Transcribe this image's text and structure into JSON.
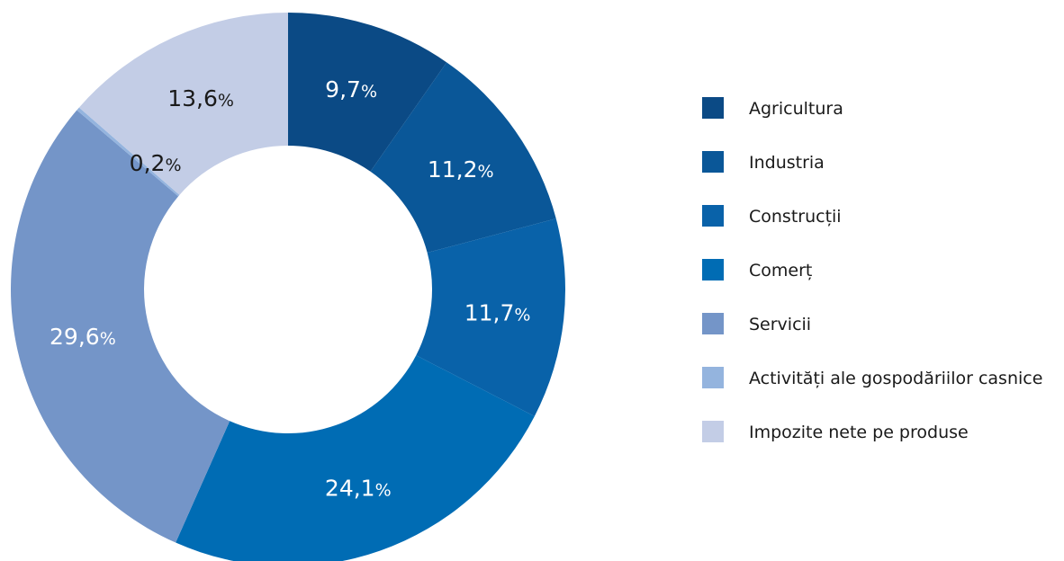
{
  "chart_data": {
    "type": "pie",
    "variant": "donut",
    "title": "",
    "categories": [
      "Agricultura",
      "Industria",
      "Construcții",
      "Comerț",
      "Servicii",
      "Activități ale gospodăriilor casnice",
      "Impozite nete pe produse"
    ],
    "values": [
      9.7,
      11.2,
      11.7,
      24.1,
      29.6,
      0.2,
      13.6
    ],
    "labels": [
      {
        "number": "9,7",
        "unit": "%"
      },
      {
        "number": "11,2",
        "unit": "%"
      },
      {
        "number": "11,7",
        "unit": "%"
      },
      {
        "number": "24,1",
        "unit": "%"
      },
      {
        "number": "29,6",
        "unit": "%"
      },
      {
        "number": "0,2",
        "unit": "%"
      },
      {
        "number": "13,6",
        "unit": "%"
      }
    ],
    "colors": [
      "#0b4a85",
      "#0a5798",
      "#0962a9",
      "#006cb4",
      "#7495c8",
      "#94b4de",
      "#c3cde6"
    ],
    "label_colors": [
      "#ffffff",
      "#ffffff",
      "#ffffff",
      "#ffffff",
      "#ffffff",
      "#1a1a1a",
      "#1a1a1a"
    ],
    "legend": {
      "position": "right"
    }
  }
}
